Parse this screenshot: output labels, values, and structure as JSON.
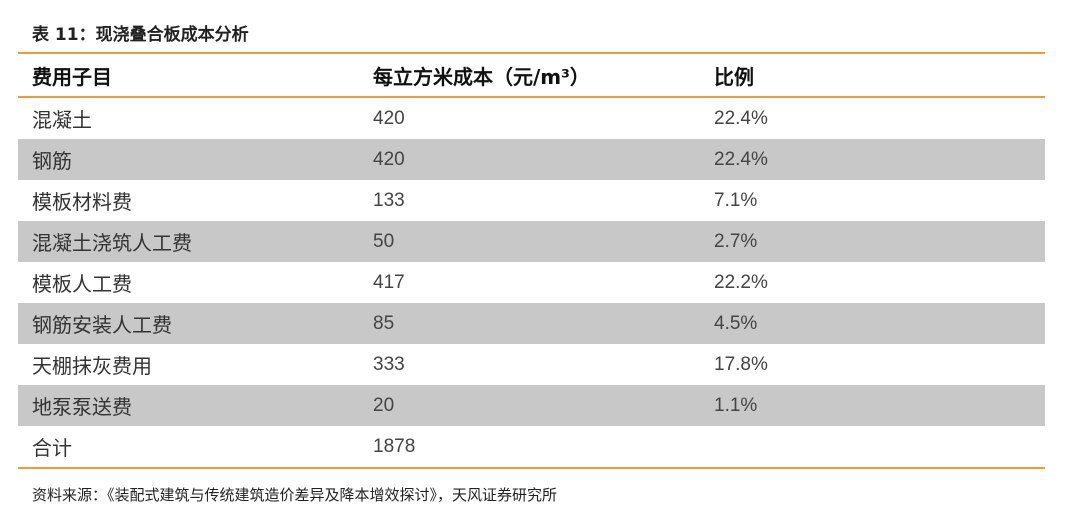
{
  "caption": "表 11：现浇叠合板成本分析",
  "headers": {
    "col1": "费用子目",
    "col2": "每立方米成本（元/m³）",
    "col3": "比例"
  },
  "rows": [
    {
      "item": "混凝土",
      "cost": "420",
      "ratio": "22.4%"
    },
    {
      "item": "钢筋",
      "cost": "420",
      "ratio": "22.4%"
    },
    {
      "item": "模板材料费",
      "cost": "133",
      "ratio": "7.1%"
    },
    {
      "item": "混凝土浇筑人工费",
      "cost": "50",
      "ratio": "2.7%"
    },
    {
      "item": "模板人工费",
      "cost": "417",
      "ratio": "22.2%"
    },
    {
      "item": "钢筋安装人工费",
      "cost": "85",
      "ratio": "4.5%"
    },
    {
      "item": "天棚抹灰费用",
      "cost": "333",
      "ratio": "17.8%"
    },
    {
      "item": "地泵泵送费",
      "cost": "20",
      "ratio": "1.1%"
    },
    {
      "item": "合计",
      "cost": "1878",
      "ratio": ""
    }
  ],
  "source": "资料来源：《装配式建筑与传统建筑造价差异及降本增效探讨》，天风证券研究所",
  "colors": {
    "rule": "#ef9b3a",
    "shade": "#c8c8c8"
  }
}
